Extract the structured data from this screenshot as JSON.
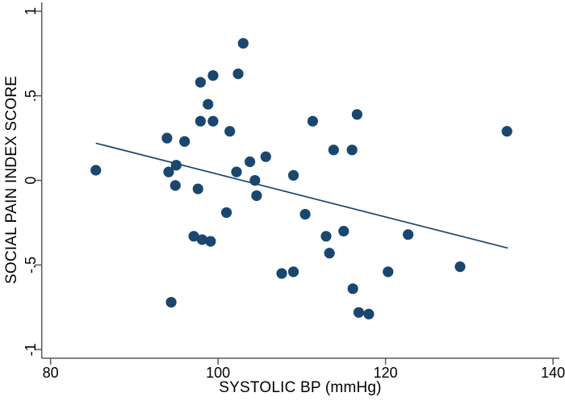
{
  "chart_data": {
    "type": "scatter",
    "title": "",
    "xlabel": "SYSTOLIC BP (mmHg)",
    "ylabel": "SOCIAL PAIN INDEX SCORE",
    "x_tick_values": [
      80,
      100,
      120,
      140
    ],
    "x_tick_labels": [
      "80",
      "100",
      "120",
      "140"
    ],
    "y_tick_values": [
      1,
      0.5,
      0,
      -0.5,
      -1
    ],
    "y_tick_labels": [
      "1",
      ".5",
      "0",
      "-.5",
      "-1"
    ],
    "xlim": [
      78.94,
      140.66
    ],
    "ylim": [
      -1.051,
      1.028
    ],
    "grid": false,
    "legend": null,
    "marker_color": "#1a476f",
    "line_color": "#1a476f",
    "axis_color": "#595959",
    "text_color": "#000000",
    "points": [
      [
        103.0,
        0.81
      ],
      [
        102.4,
        0.63
      ],
      [
        99.4,
        0.62
      ],
      [
        97.9,
        0.58
      ],
      [
        98.8,
        0.45
      ],
      [
        97.9,
        0.35
      ],
      [
        99.4,
        0.35
      ],
      [
        101.4,
        0.29
      ],
      [
        93.9,
        0.25
      ],
      [
        96.0,
        0.23
      ],
      [
        95.0,
        0.09
      ],
      [
        94.1,
        0.05
      ],
      [
        94.9,
        -0.03
      ],
      [
        97.6,
        -0.05
      ],
      [
        102.2,
        0.05
      ],
      [
        103.8,
        0.11
      ],
      [
        105.7,
        0.14
      ],
      [
        104.4,
        0.0
      ],
      [
        104.6,
        -0.09
      ],
      [
        101.0,
        -0.19
      ],
      [
        97.1,
        -0.33
      ],
      [
        98.1,
        -0.35
      ],
      [
        99.1,
        -0.36
      ],
      [
        111.3,
        0.35
      ],
      [
        116.6,
        0.39
      ],
      [
        113.8,
        0.18
      ],
      [
        116.0,
        0.18
      ],
      [
        109.0,
        0.03
      ],
      [
        110.4,
        -0.2
      ],
      [
        85.4,
        0.06
      ],
      [
        94.4,
        -0.72
      ],
      [
        112.9,
        -0.33
      ],
      [
        115.0,
        -0.3
      ],
      [
        113.3,
        -0.43
      ],
      [
        107.6,
        -0.55
      ],
      [
        109.0,
        -0.54
      ],
      [
        120.3,
        -0.54
      ],
      [
        128.9,
        -0.51
      ],
      [
        116.1,
        -0.64
      ],
      [
        116.8,
        -0.78
      ],
      [
        118.0,
        -0.79
      ],
      [
        134.5,
        0.29
      ],
      [
        122.7,
        -0.32
      ]
    ],
    "fit_line": {
      "x": [
        85.4,
        134.6
      ],
      "y": [
        0.22,
        -0.4
      ]
    }
  }
}
